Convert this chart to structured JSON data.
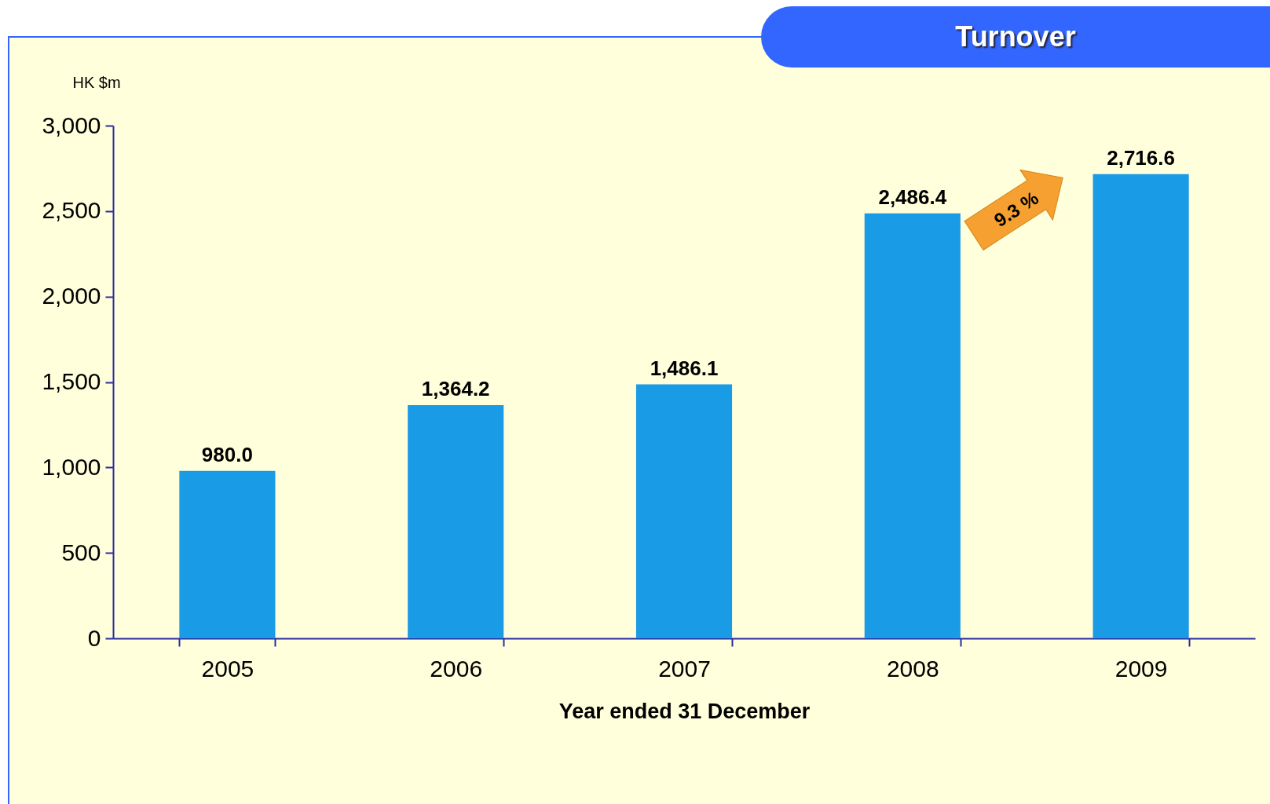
{
  "chart_data": {
    "type": "bar",
    "title": "Turnover",
    "ylabel": "HK $m",
    "xlabel": "Year ended 31 December",
    "categories": [
      "2005",
      "2006",
      "2007",
      "2008",
      "2009"
    ],
    "values": [
      980.0,
      1364.2,
      1486.1,
      2486.4,
      2716.6
    ],
    "value_labels": [
      "980.0",
      "1,364.2",
      "1,486.1",
      "2,486.4",
      "2,716.6"
    ],
    "color": "#1a9be6",
    "ylim": [
      0,
      3000
    ],
    "yticks": [
      {
        "value": 0,
        "label": "0"
      },
      {
        "value": 500,
        "label": "500"
      },
      {
        "value": 1000,
        "label": "1,000"
      },
      {
        "value": 1500,
        "label": "1,500"
      },
      {
        "value": 2000,
        "label": "2,000"
      },
      {
        "value": 2500,
        "label": "2,500"
      },
      {
        "value": 3000,
        "label": "3,000"
      }
    ],
    "annotations": [
      "9.3 %"
    ],
    "grid": false
  }
}
